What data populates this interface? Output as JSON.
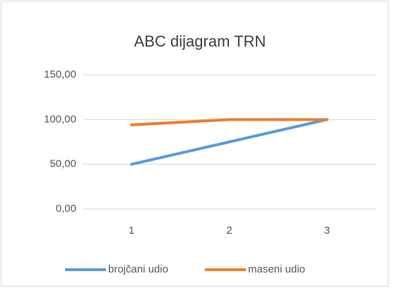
{
  "chart_data": {
    "type": "line",
    "title": "ABC dijagram TRN",
    "categories": [
      "1",
      "2",
      "3"
    ],
    "series": [
      {
        "name": "brojčani udio",
        "color": "#5b9bd5",
        "values": [
          50,
          75,
          100
        ]
      },
      {
        "name": "maseni udio",
        "color": "#ed7d31",
        "values": [
          94,
          100,
          100
        ]
      }
    ],
    "ylim": [
      0,
      150
    ],
    "yticks": [
      {
        "value": 0,
        "label": "0,00"
      },
      {
        "value": 50,
        "label": "50,00"
      },
      {
        "value": 100,
        "label": "100,00"
      },
      {
        "value": 150,
        "label": "150,00"
      }
    ],
    "grid": true,
    "legend": "bottom"
  }
}
